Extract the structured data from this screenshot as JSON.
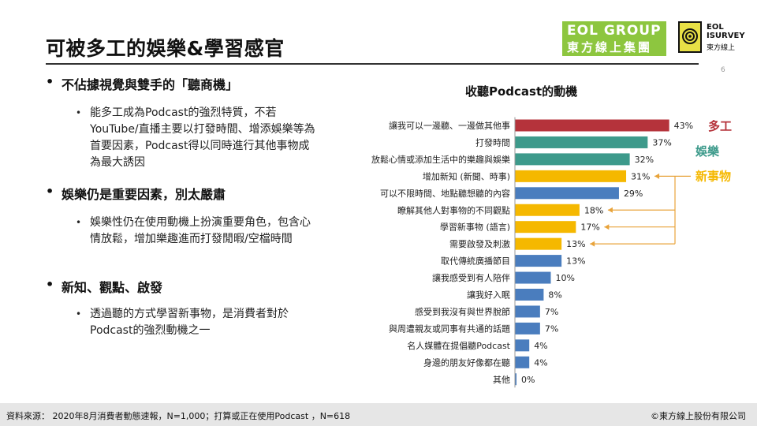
{
  "header": {
    "title": "可被多工的娛樂&學習感官",
    "page_number": "6",
    "logo_eol_line1": "EOL GROUP",
    "logo_eol_line2": "東方線上集團",
    "logo_survey_line1": "EOL",
    "logo_survey_line2": "ISURVEY",
    "logo_survey_line3": "東方線上"
  },
  "points": [
    {
      "bullet": "不佔據視覺與雙手的「聽商機」",
      "detail": "能多工成為Podcast的強烈特質，不若YouTube/直播主要以打發時間、增添娛樂等為首要因素，Podcast得以同時進行其他事物成為最大誘因"
    },
    {
      "bullet": "娛樂仍是重要因素，別太嚴肅",
      "detail": "娛樂性仍在使用動機上扮演重要角色，包含心情放鬆，增加樂趣進而打發閒暇/空檔時間"
    },
    {
      "bullet": "新知、觀點、啟發",
      "detail": "透過聽的方式學習新事物，是消費者對於Podcast的強烈動機之一"
    }
  ],
  "chart_data": {
    "type": "bar",
    "orientation": "horizontal",
    "title": "收聽Podcast的動機",
    "categories": [
      "讓我可以一邊聽、一邊做其他事",
      "打發時間",
      "放鬆心情或添加生活中的樂趣與娛樂",
      "增加新知 (新聞、時事)",
      "可以不限時間、地點聽想聽的內容",
      "瞭解其他人對事物的不同觀點",
      "學習新事物 (語言)",
      "需要啟發及刺激",
      "取代傳統廣播節目",
      "讓我感受到有人陪伴",
      "讓我好入眠",
      "感受到我沒有與世界脫節",
      "與周遭親友或同事有共通的話題",
      "名人媒體在提倡聽Podcast",
      "身邊的朋友好像都在聽",
      "其他"
    ],
    "values": [
      43,
      37,
      32,
      31,
      29,
      18,
      17,
      13,
      13,
      10,
      8,
      7,
      7,
      4,
      4,
      0
    ],
    "value_labels": [
      "43%",
      "37%",
      "32%",
      "31%",
      "29%",
      "18%",
      "17%",
      "13%",
      "13%",
      "10%",
      "8%",
      "7%",
      "7%",
      "4%",
      "4%",
      "0%"
    ],
    "bar_groups": [
      "multitask",
      "entertain",
      "entertain",
      "newthings",
      "default",
      "newthings",
      "newthings",
      "newthings",
      "default",
      "default",
      "default",
      "default",
      "default",
      "default",
      "default",
      "default"
    ],
    "colors": {
      "multitask": "#b5333b",
      "entertain": "#3d9a8b",
      "newthings": "#f5b800",
      "default": "#4a7dbe"
    },
    "annotations": [
      {
        "text": "多工",
        "group": "multitask",
        "color": "#b5333b"
      },
      {
        "text": "娛樂",
        "group": "entertain",
        "color": "#3d9a8b"
      },
      {
        "text": "新事物",
        "group": "newthings",
        "color": "#f5b800"
      }
    ]
  },
  "footer": {
    "source": "資料來源：  2020年8月消費者動態速報，N=1,000；打算或正在使用Podcast  ，N=618",
    "copyright": "©東方線上股份有限公司"
  }
}
